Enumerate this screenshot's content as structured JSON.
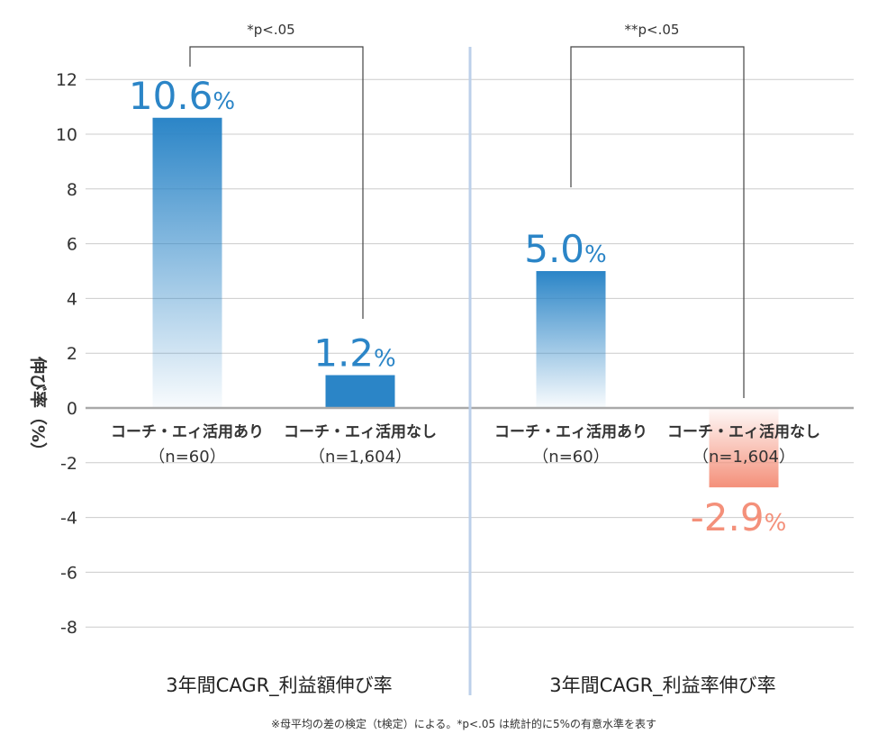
{
  "chart_data": {
    "type": "bar",
    "ylabel": "伸び率（%）",
    "ylim": [
      -9,
      12.5
    ],
    "yticks": [
      12,
      10,
      8,
      6,
      4,
      2,
      0,
      -2,
      -4,
      -6,
      -8
    ],
    "grid": true,
    "colors": {
      "positive": "#2b85c7",
      "negative": "#f4907a",
      "grid": "#cccccc",
      "divider": "#bcd0ea"
    },
    "panels": [
      {
        "title": "3年間CAGR_利益額伸び率",
        "significance": "*p<.05",
        "bars": [
          {
            "category": "コーチ・エィ活用あり",
            "n_label": "（n=60）",
            "value": 10.6,
            "value_label": "10.6",
            "unit": "%"
          },
          {
            "category": "コーチ・エィ活用なし",
            "n_label": "（n=1,604）",
            "value": 1.2,
            "value_label": "1.2",
            "unit": "%"
          }
        ]
      },
      {
        "title": "3年間CAGR_利益率伸び率",
        "significance": "**p<.05",
        "bars": [
          {
            "category": "コーチ・エィ活用あり",
            "n_label": "（n=60）",
            "value": 5.0,
            "value_label": "5.0",
            "unit": "%"
          },
          {
            "category": "コーチ・エィ活用なし",
            "n_label": "（n=1,604）",
            "value": -2.9,
            "value_label": "-2.9",
            "unit": "%"
          }
        ]
      }
    ],
    "footnote": "※母平均の差の検定（t検定）による。*p<.05 は統計的に5%の有意水準を表す"
  }
}
